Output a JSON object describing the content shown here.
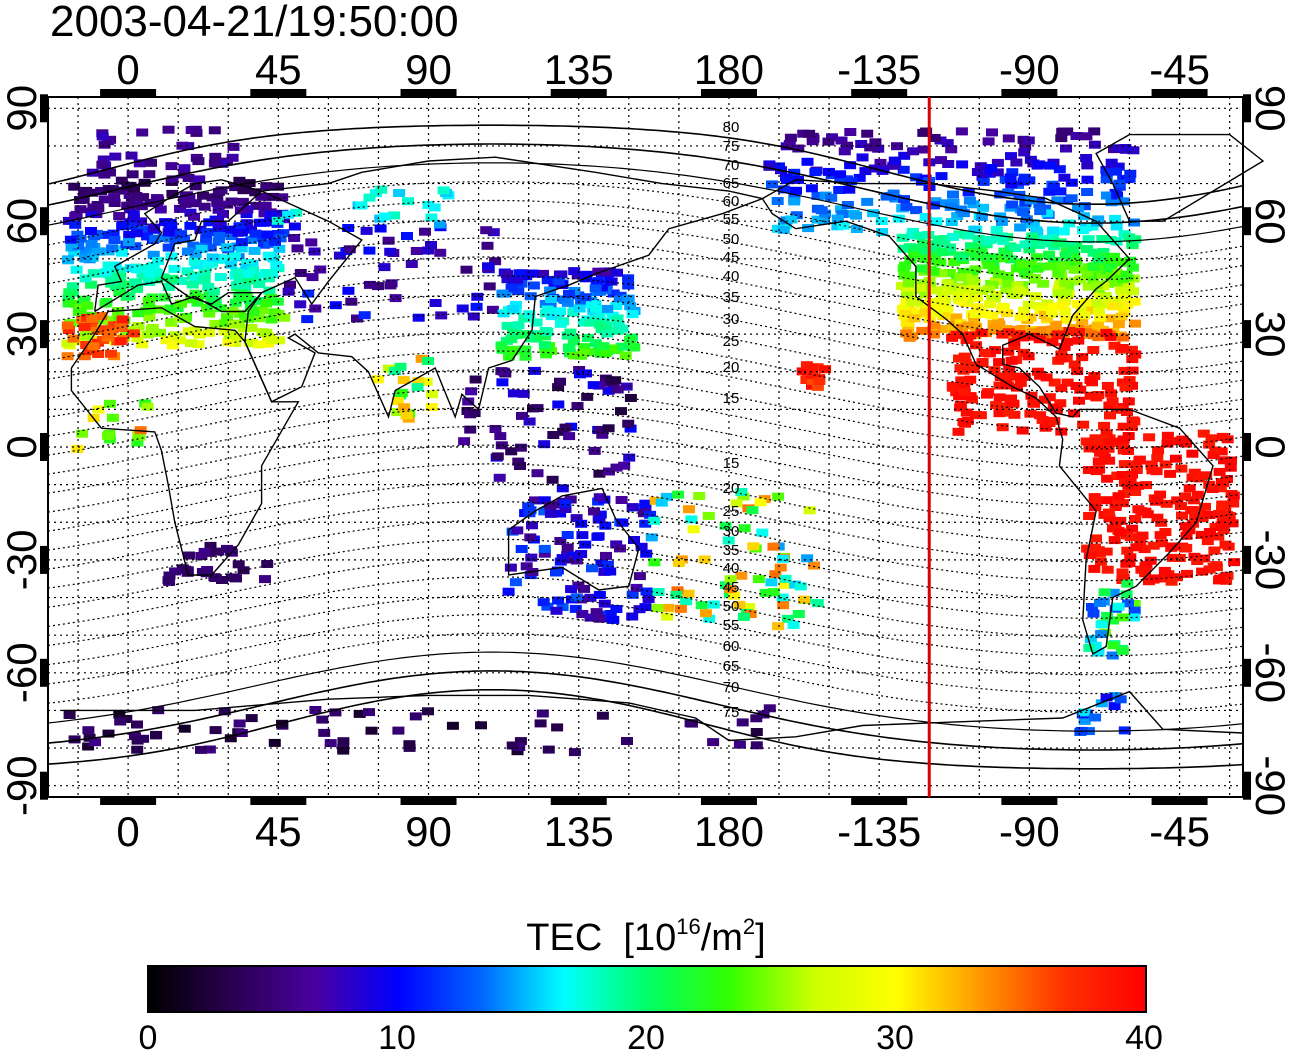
{
  "timestamp": "2003-04-21/19:50:00",
  "map": {
    "x_tick_labels": [
      "0",
      "45",
      "90",
      "135",
      "180",
      "-135",
      "-90",
      "-45"
    ],
    "x_tick_lons": [
      0,
      45,
      90,
      135,
      180,
      225,
      270,
      315
    ],
    "y_tick_labels": [
      "90",
      "60",
      "30",
      "0",
      "-30",
      "-60",
      "-90"
    ],
    "y_tick_lats": [
      90,
      60,
      30,
      0,
      -30,
      -60,
      -90
    ],
    "lon_range": [
      -24,
      334
    ],
    "lat_range": [
      -93,
      93
    ],
    "terminator_longitude": 240,
    "terminator_color": "#dd0000",
    "contour_labels_north": [
      "80",
      "75",
      "70",
      "65",
      "60",
      "55",
      "50",
      "45",
      "40",
      "35",
      "30",
      "25",
      "20",
      "15"
    ],
    "contour_labels_south": [
      "15",
      "20",
      "25",
      "30",
      "35",
      "40",
      "45",
      "50",
      "55",
      "60",
      "65",
      "70",
      "75"
    ]
  },
  "colorbar": {
    "title": "TEC",
    "unit_base": "[10",
    "unit_exp": "16",
    "unit_mid": "/m",
    "unit_exp2": "2",
    "unit_end": "]",
    "tick_labels": [
      "0",
      "10",
      "20",
      "30",
      "40"
    ],
    "range": [
      0,
      40
    ],
    "gradient_colors": [
      "#000000",
      "#2a0050",
      "#4a00a0",
      "#0000ff",
      "#0066ff",
      "#00ffff",
      "#00ff66",
      "#33ff00",
      "#ccff00",
      "#ffff00",
      "#ff9900",
      "#ff3300",
      "#ff0000"
    ]
  }
}
